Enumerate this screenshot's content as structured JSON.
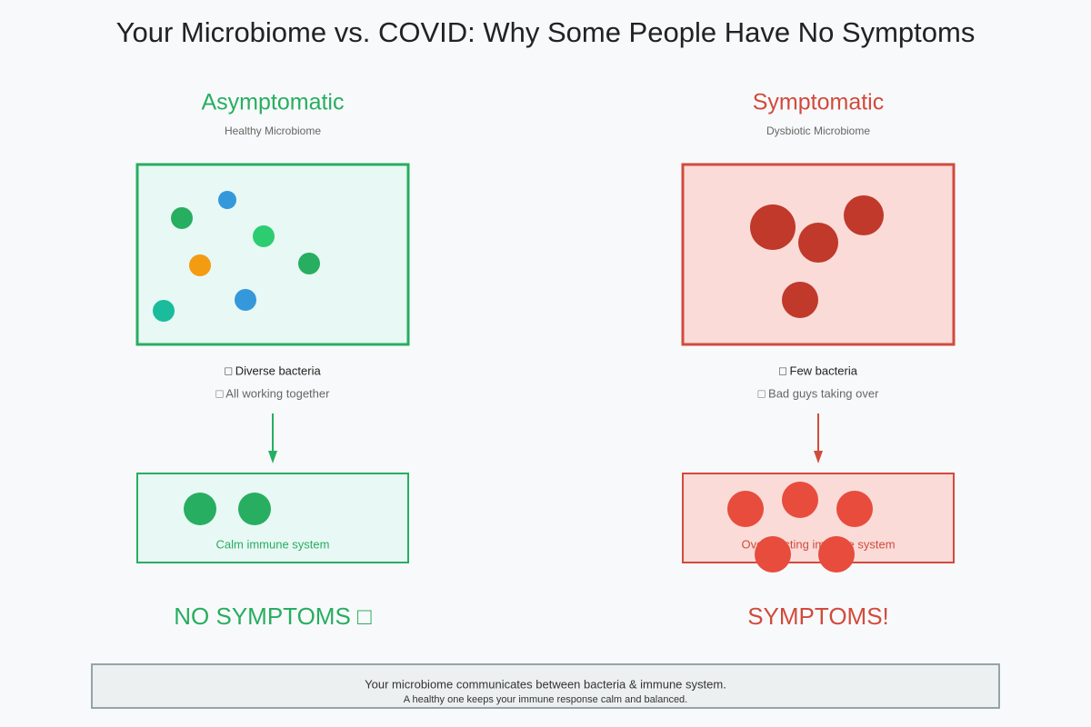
{
  "title": "Your Microbiome vs. COVID: Why Some People Have No Symptoms",
  "panels": [
    {
      "heading": "Asymptomatic",
      "subheading": "Healthy Microbiome",
      "traits": [
        "□ Diverse bacteria",
        "□ All working together"
      ],
      "immune_label": "Calm immune system",
      "outcome": "NO SYMPTOMS □"
    },
    {
      "heading": "Symptomatic",
      "subheading": "Dysbiotic Microbiome",
      "traits": [
        "□ Few bacteria",
        "□ Bad guys taking over"
      ],
      "immune_label": "Overreacting immune system",
      "outcome": "SYMPTOMS!"
    }
  ],
  "footer": [
    "Your microbiome communicates between bacteria & immune system.",
    "A healthy one keeps your immune response calm and balanced."
  ]
}
